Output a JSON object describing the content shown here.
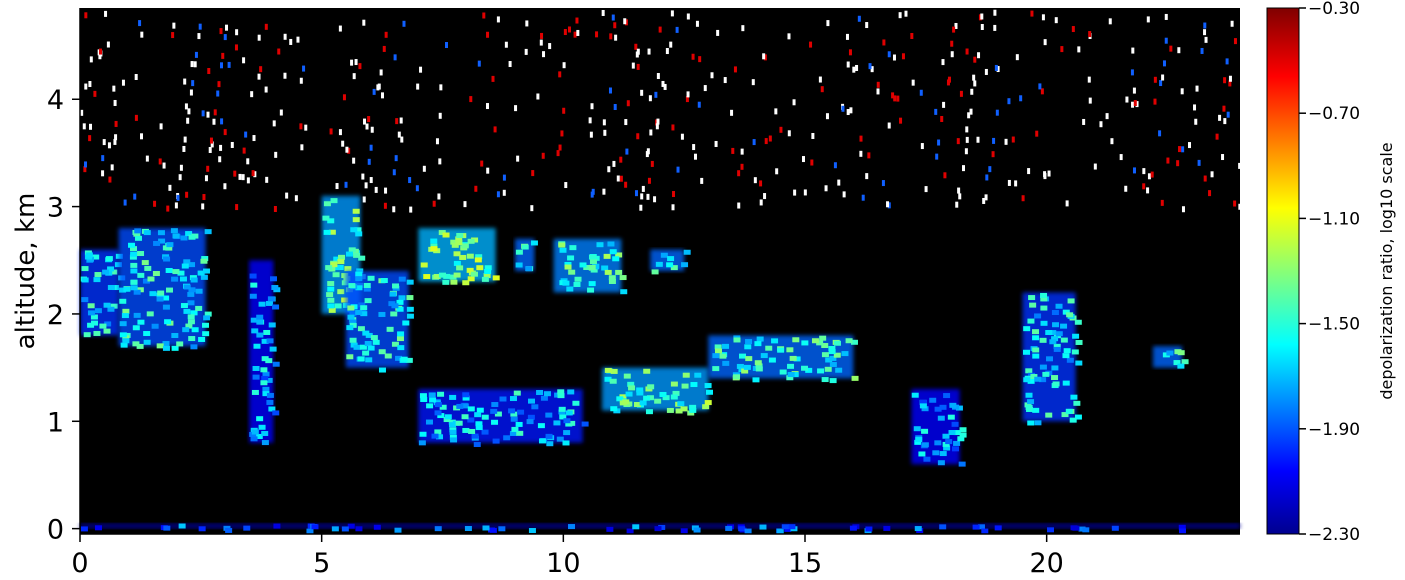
{
  "chart_data": {
    "type": "heatmap",
    "title": "",
    "xlabel": "",
    "ylabel": "altitude, km",
    "xlim": [
      0,
      24
    ],
    "ylim": [
      -0.05,
      4.85
    ],
    "x_ticks": [
      0,
      5,
      10,
      15,
      20
    ],
    "x_tick_labels": [
      "0",
      "5",
      "10",
      "15",
      "20"
    ],
    "y_ticks": [
      0,
      1,
      2,
      3,
      4
    ],
    "y_tick_labels": [
      "0",
      "1",
      "2",
      "3",
      "4"
    ],
    "background_color": "#000000",
    "colorbar": {
      "label": "depolarization ratio, log10 scale",
      "range": [
        -2.3,
        -0.3
      ],
      "ticks": [
        -0.3,
        -0.7,
        -1.1,
        -1.5,
        -1.9,
        -2.3
      ],
      "tick_labels": [
        "−0.30",
        "−0.70",
        "−1.10",
        "−1.50",
        "−1.90",
        "−2.30"
      ],
      "colormap": "jet"
    },
    "features": [
      {
        "x": [
          0.0,
          0.8
        ],
        "y": [
          1.8,
          2.6
        ],
        "value": -1.6
      },
      {
        "x": [
          0.8,
          2.6
        ],
        "y": [
          1.7,
          2.8
        ],
        "value": -1.55
      },
      {
        "x": [
          3.5,
          4.0
        ],
        "y": [
          0.8,
          2.5
        ],
        "value": -1.7
      },
      {
        "x": [
          5.0,
          5.8
        ],
        "y": [
          2.0,
          3.1
        ],
        "value": -1.4
      },
      {
        "x": [
          5.5,
          6.8
        ],
        "y": [
          1.5,
          2.4
        ],
        "value": -1.55
      },
      {
        "x": [
          7.0,
          8.6
        ],
        "y": [
          2.3,
          2.8
        ],
        "value": -1.35
      },
      {
        "x": [
          9.0,
          9.4
        ],
        "y": [
          2.4,
          2.7
        ],
        "value": -1.5
      },
      {
        "x": [
          9.8,
          11.2
        ],
        "y": [
          2.2,
          2.7
        ],
        "value": -1.45
      },
      {
        "x": [
          11.8,
          12.5
        ],
        "y": [
          2.4,
          2.6
        ],
        "value": -1.5
      },
      {
        "x": [
          10.8,
          13.0
        ],
        "y": [
          1.1,
          1.5
        ],
        "value": -1.4
      },
      {
        "x": [
          13.0,
          16.0
        ],
        "y": [
          1.4,
          1.8
        ],
        "value": -1.5
      },
      {
        "x": [
          17.2,
          18.2
        ],
        "y": [
          0.6,
          1.3
        ],
        "value": -1.7
      },
      {
        "x": [
          19.5,
          20.6
        ],
        "y": [
          1.0,
          2.2
        ],
        "value": -1.6
      },
      {
        "x": [
          22.2,
          22.8
        ],
        "y": [
          1.5,
          1.7
        ],
        "value": -1.5
      },
      {
        "x": [
          7.0,
          10.4
        ],
        "y": [
          0.8,
          1.3
        ],
        "value": -1.65
      },
      {
        "x": [
          0.0,
          24.0
        ],
        "y": [
          0.0,
          0.05
        ],
        "value": -1.9
      }
    ]
  }
}
